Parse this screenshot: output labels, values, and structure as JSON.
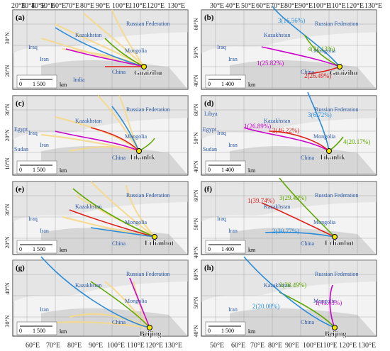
{
  "top_axis_labels": {
    "left": [
      "20°E",
      "30°E",
      "40°E",
      "50°E",
      "60°E",
      "70°E",
      "80°E",
      "90°E",
      "100°E",
      "110°E",
      "120°E",
      "130°E"
    ],
    "right": [
      "30°E",
      "40°E",
      "50°E",
      "60°E",
      "70°E",
      "80°E",
      "90°E",
      "100°E",
      "110°E",
      "120°E",
      "130°E"
    ]
  },
  "bottom_axis_labels": {
    "left": [
      "60°E",
      "70°E",
      "80°E",
      "90°E",
      "100°E",
      "110°E",
      "120°E",
      "130°E"
    ],
    "right": [
      "50°E",
      "60°E",
      "70°E",
      "80°E",
      "90°E",
      "100°E",
      "110°E",
      "120°E",
      "130°E"
    ]
  },
  "colors": {
    "cluster1": "#cc00cc",
    "cluster2": "#e0201a",
    "cluster3": "#2a8bd8",
    "cluster4": "#5fa800",
    "traj": "#f5d98c",
    "country": "#2b5aa8",
    "land": "#d9d9d9",
    "sea": "#f3f3f3",
    "station": "#f2e600"
  },
  "panels": [
    {
      "letter": "(a)",
      "station": "Guaizihu",
      "lat_labels": [
        "30°N",
        "20°N"
      ],
      "countries": [
        "Russian Federation",
        "Kazakhstan",
        "Mongolia",
        "Iraq",
        "Iran",
        "China",
        "India"
      ],
      "scale": {
        "left": "0",
        "right": "1 500",
        "unit": "km"
      },
      "clusters": []
    },
    {
      "letter": "(b)",
      "station": "Guaizihu",
      "lat_labels": [
        "60°N",
        "50°N",
        "40°N"
      ],
      "countries": [
        "Russian Federation",
        "Kazakhstan",
        "Mongolia",
        "Iraq",
        "Iran",
        "China"
      ],
      "scale": {
        "left": "0",
        "right": "1 400",
        "unit": "km"
      },
      "clusters": [
        {
          "label": "3(16.56%)",
          "color": "#2a8bd8"
        },
        {
          "label": "4(31.13%)",
          "color": "#5fa800"
        },
        {
          "label": "1(25.82%)",
          "color": "#cc00cc"
        },
        {
          "label": "2(26.49%)",
          "color": "#e0201a"
        }
      ]
    },
    {
      "letter": "(c)",
      "station": "Tikanlik",
      "lat_labels": [
        "30°N",
        "20°N",
        "10°N"
      ],
      "countries": [
        "Russian Federation",
        "Kazakhstan",
        "Mongolia",
        "Egypt",
        "Iraq",
        "Iran",
        "Sudan",
        "China"
      ],
      "scale": {
        "left": "0",
        "right": "1 500",
        "unit": "km"
      },
      "clusters": []
    },
    {
      "letter": "(d)",
      "station": "Tikanlik",
      "lat_labels": [
        "60°N",
        "50°N",
        "40°N"
      ],
      "countries": [
        "Russian Federation",
        "Kazakhstan",
        "Mongolia",
        "Libya",
        "Egypt",
        "Iraq",
        "Iran",
        "Sudan",
        "China"
      ],
      "scale": {
        "left": "0",
        "right": "1 400",
        "unit": "km"
      },
      "clusters": [
        {
          "label": "3(6.72%)",
          "color": "#2a8bd8"
        },
        {
          "label": "1(26.89%)",
          "color": "#cc00cc"
        },
        {
          "label": "2(46.22%)",
          "color": "#e0201a"
        },
        {
          "label": "4(20.17%)",
          "color": "#5fa800"
        }
      ]
    },
    {
      "letter": "(e)",
      "station": "Erlianhot",
      "lat_labels": [
        "30°N",
        "20°N"
      ],
      "countries": [
        "Russian Federation",
        "Kazakhstan",
        "Mongolia",
        "Iraq",
        "Iran",
        "China"
      ],
      "scale": {
        "left": "0",
        "right": "1 500",
        "unit": "km"
      },
      "clusters": []
    },
    {
      "letter": "(f)",
      "station": "Erlianhot",
      "lat_labels": [
        "60°N",
        "50°N",
        "40°N"
      ],
      "countries": [
        "Russian Federation",
        "Kazakhstan",
        "Mongolia",
        "Iraq",
        "Iran",
        "China"
      ],
      "scale": {
        "left": "0",
        "right": "1 400",
        "unit": "km"
      },
      "clusters": [
        {
          "label": "1(39.74%)",
          "color": "#e0201a"
        },
        {
          "label": "3(29.49%)",
          "color": "#5fa800"
        },
        {
          "label": "2(30.77%)",
          "color": "#2a8bd8"
        }
      ]
    },
    {
      "letter": "(g)",
      "station": "Beijing",
      "lat_labels": [
        "40°N",
        "30°N"
      ],
      "countries": [
        "Russian Federation",
        "Kazakhstan",
        "Mongolia",
        "Iran",
        "China"
      ],
      "scale": {
        "left": "0",
        "right": "1 500",
        "unit": "km"
      },
      "clusters": []
    },
    {
      "letter": "(h)",
      "station": "Beijing",
      "lat_labels": [
        "60°N",
        "50°N",
        "40°N"
      ],
      "countries": [
        "Russian Federation",
        "Kazakhstan",
        "Mongolia",
        "Iran",
        "China"
      ],
      "scale": {
        "left": "0",
        "right": "1 500",
        "unit": "km"
      },
      "clusters": [
        {
          "label": "3(38.49%)",
          "color": "#5fa800"
        },
        {
          "label": "1(41.43%)",
          "color": "#cc00cc"
        },
        {
          "label": "2(20.08%)",
          "color": "#2a8bd8"
        }
      ]
    }
  ]
}
